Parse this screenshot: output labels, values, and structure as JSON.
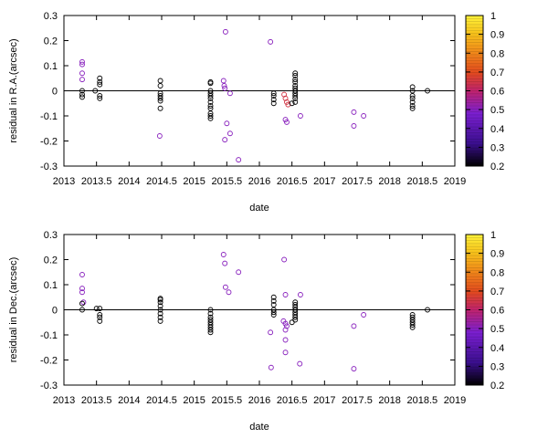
{
  "chart_data": [
    {
      "type": "scatter",
      "xlabel": "date",
      "ylabel": "residual in R.A.(arcsec)",
      "xlim": [
        2013,
        2019
      ],
      "ylim": [
        -0.3,
        0.3
      ],
      "xticks": [
        "2013",
        "2013.5",
        "2014",
        "2014.5",
        "2015",
        "2015.5",
        "2016",
        "2016.5",
        "2017",
        "2017.5",
        "2018",
        "2018.5",
        "2019"
      ],
      "yticks": [
        "0.3",
        "0.2",
        "0.1",
        "0",
        "-0.1",
        "-0.2",
        "-0.3"
      ],
      "zero_line": true,
      "colorbar": {
        "min": 0.2,
        "max": 1,
        "ticks": [
          "1",
          "0.9",
          "0.8",
          "0.7",
          "0.6",
          "0.5",
          "0.4",
          "0.3",
          "0.2"
        ],
        "colors": [
          "#000000",
          "#3b0f8f",
          "#7b1fd0",
          "#c0236c",
          "#e24a1e",
          "#f0861a",
          "#f7c21b",
          "#fff23a"
        ]
      },
      "points": [
        {
          "x": 2013.28,
          "y": 0.115,
          "c": 0.45
        },
        {
          "x": 2013.28,
          "y": 0.105,
          "c": 0.45
        },
        {
          "x": 2013.28,
          "y": 0.07,
          "c": 0.45
        },
        {
          "x": 2013.28,
          "y": 0.045,
          "c": 0.45
        },
        {
          "x": 2013.28,
          "y": 0.0,
          "c": 0.2
        },
        {
          "x": 2013.28,
          "y": -0.015,
          "c": 0.2
        },
        {
          "x": 2013.28,
          "y": -0.025,
          "c": 0.2
        },
        {
          "x": 2013.55,
          "y": 0.05,
          "c": 0.2
        },
        {
          "x": 2013.55,
          "y": 0.035,
          "c": 0.2
        },
        {
          "x": 2013.55,
          "y": 0.025,
          "c": 0.2
        },
        {
          "x": 2013.48,
          "y": 0.0,
          "c": 0.2
        },
        {
          "x": 2013.55,
          "y": -0.02,
          "c": 0.2
        },
        {
          "x": 2013.55,
          "y": -0.03,
          "c": 0.2
        },
        {
          "x": 2014.48,
          "y": 0.04,
          "c": 0.2
        },
        {
          "x": 2014.48,
          "y": 0.02,
          "c": 0.2
        },
        {
          "x": 2014.48,
          "y": -0.01,
          "c": 0.2
        },
        {
          "x": 2014.48,
          "y": -0.02,
          "c": 0.2
        },
        {
          "x": 2014.48,
          "y": -0.03,
          "c": 0.2
        },
        {
          "x": 2014.48,
          "y": -0.04,
          "c": 0.2
        },
        {
          "x": 2014.48,
          "y": -0.07,
          "c": 0.2
        },
        {
          "x": 2014.47,
          "y": -0.18,
          "c": 0.45
        },
        {
          "x": 2015.25,
          "y": 0.035,
          "c": 0.2
        },
        {
          "x": 2015.25,
          "y": 0.03,
          "c": 0.2
        },
        {
          "x": 2015.25,
          "y": 0.0,
          "c": 0.2
        },
        {
          "x": 2015.25,
          "y": -0.01,
          "c": 0.2
        },
        {
          "x": 2015.25,
          "y": -0.02,
          "c": 0.2
        },
        {
          "x": 2015.25,
          "y": -0.03,
          "c": 0.2
        },
        {
          "x": 2015.25,
          "y": -0.045,
          "c": 0.2
        },
        {
          "x": 2015.25,
          "y": -0.06,
          "c": 0.2
        },
        {
          "x": 2015.25,
          "y": -0.07,
          "c": 0.2
        },
        {
          "x": 2015.25,
          "y": -0.09,
          "c": 0.2
        },
        {
          "x": 2015.25,
          "y": -0.1,
          "c": 0.2
        },
        {
          "x": 2015.25,
          "y": -0.11,
          "c": 0.2
        },
        {
          "x": 2015.48,
          "y": 0.235,
          "c": 0.45
        },
        {
          "x": 2015.45,
          "y": 0.04,
          "c": 0.45
        },
        {
          "x": 2015.46,
          "y": 0.02,
          "c": 0.45
        },
        {
          "x": 2015.47,
          "y": 0.01,
          "c": 0.45
        },
        {
          "x": 2015.55,
          "y": -0.01,
          "c": 0.45
        },
        {
          "x": 2015.5,
          "y": -0.13,
          "c": 0.45
        },
        {
          "x": 2015.55,
          "y": -0.17,
          "c": 0.45
        },
        {
          "x": 2015.47,
          "y": -0.195,
          "c": 0.45
        },
        {
          "x": 2015.68,
          "y": -0.275,
          "c": 0.45
        },
        {
          "x": 2016.17,
          "y": 0.195,
          "c": 0.45
        },
        {
          "x": 2016.22,
          "y": -0.01,
          "c": 0.2
        },
        {
          "x": 2016.22,
          "y": -0.02,
          "c": 0.2
        },
        {
          "x": 2016.22,
          "y": -0.035,
          "c": 0.2
        },
        {
          "x": 2016.22,
          "y": -0.05,
          "c": 0.2
        },
        {
          "x": 2016.38,
          "y": -0.015,
          "c": 0.6
        },
        {
          "x": 2016.4,
          "y": -0.03,
          "c": 0.6
        },
        {
          "x": 2016.42,
          "y": -0.045,
          "c": 0.6
        },
        {
          "x": 2016.44,
          "y": -0.055,
          "c": 0.6
        },
        {
          "x": 2016.4,
          "y": -0.115,
          "c": 0.45
        },
        {
          "x": 2016.42,
          "y": -0.125,
          "c": 0.45
        },
        {
          "x": 2016.55,
          "y": 0.07,
          "c": 0.2
        },
        {
          "x": 2016.55,
          "y": 0.06,
          "c": 0.2
        },
        {
          "x": 2016.55,
          "y": 0.045,
          "c": 0.2
        },
        {
          "x": 2016.55,
          "y": 0.035,
          "c": 0.2
        },
        {
          "x": 2016.55,
          "y": 0.02,
          "c": 0.2
        },
        {
          "x": 2016.55,
          "y": 0.01,
          "c": 0.2
        },
        {
          "x": 2016.55,
          "y": 0.0,
          "c": 0.2
        },
        {
          "x": 2016.55,
          "y": -0.01,
          "c": 0.2
        },
        {
          "x": 2016.55,
          "y": -0.02,
          "c": 0.2
        },
        {
          "x": 2016.55,
          "y": -0.03,
          "c": 0.2
        },
        {
          "x": 2016.55,
          "y": -0.045,
          "c": 0.2
        },
        {
          "x": 2016.5,
          "y": -0.05,
          "c": 0.2
        },
        {
          "x": 2016.63,
          "y": -0.1,
          "c": 0.45
        },
        {
          "x": 2017.45,
          "y": -0.085,
          "c": 0.45
        },
        {
          "x": 2017.6,
          "y": -0.1,
          "c": 0.45
        },
        {
          "x": 2017.45,
          "y": -0.14,
          "c": 0.45
        },
        {
          "x": 2018.35,
          "y": 0.015,
          "c": 0.2
        },
        {
          "x": 2018.35,
          "y": 0.0,
          "c": 0.2
        },
        {
          "x": 2018.35,
          "y": -0.02,
          "c": 0.2
        },
        {
          "x": 2018.35,
          "y": -0.03,
          "c": 0.2
        },
        {
          "x": 2018.35,
          "y": -0.045,
          "c": 0.2
        },
        {
          "x": 2018.35,
          "y": -0.06,
          "c": 0.2
        },
        {
          "x": 2018.35,
          "y": -0.07,
          "c": 0.2
        },
        {
          "x": 2018.58,
          "y": 0.0,
          "c": 0.2
        }
      ]
    },
    {
      "type": "scatter",
      "xlabel": "date",
      "ylabel": "residual in Dec.(arcsec)",
      "xlim": [
        2013,
        2019
      ],
      "ylim": [
        -0.3,
        0.3
      ],
      "xticks": [
        "2013",
        "2013.5",
        "2014",
        "2014.5",
        "2015",
        "2015.5",
        "2016",
        "2016.5",
        "2017",
        "2017.5",
        "2018",
        "2018.5",
        "2019"
      ],
      "yticks": [
        "0.3",
        "0.2",
        "0.1",
        "0",
        "-0.1",
        "-0.2",
        "-0.3"
      ],
      "zero_line": true,
      "colorbar": {
        "min": 0.2,
        "max": 1,
        "ticks": [
          "1",
          "0.9",
          "0.8",
          "0.7",
          "0.6",
          "0.5",
          "0.4",
          "0.3",
          "0.2"
        ],
        "colors": [
          "#000000",
          "#3b0f8f",
          "#7b1fd0",
          "#c0236c",
          "#e24a1e",
          "#f0861a",
          "#f7c21b",
          "#fff23a"
        ]
      },
      "points": [
        {
          "x": 2013.28,
          "y": 0.14,
          "c": 0.45
        },
        {
          "x": 2013.28,
          "y": 0.085,
          "c": 0.45
        },
        {
          "x": 2013.28,
          "y": 0.07,
          "c": 0.45
        },
        {
          "x": 2013.3,
          "y": 0.03,
          "c": 0.45
        },
        {
          "x": 2013.28,
          "y": 0.025,
          "c": 0.2
        },
        {
          "x": 2013.28,
          "y": 0.0,
          "c": 0.2
        },
        {
          "x": 2013.5,
          "y": 0.005,
          "c": 0.2
        },
        {
          "x": 2013.55,
          "y": 0.005,
          "c": 0.2
        },
        {
          "x": 2013.55,
          "y": -0.02,
          "c": 0.2
        },
        {
          "x": 2013.55,
          "y": -0.03,
          "c": 0.2
        },
        {
          "x": 2013.55,
          "y": -0.045,
          "c": 0.2
        },
        {
          "x": 2014.48,
          "y": 0.045,
          "c": 0.2
        },
        {
          "x": 2014.48,
          "y": 0.04,
          "c": 0.2
        },
        {
          "x": 2014.48,
          "y": 0.03,
          "c": 0.2
        },
        {
          "x": 2014.48,
          "y": 0.015,
          "c": 0.2
        },
        {
          "x": 2014.48,
          "y": 0.0,
          "c": 0.2
        },
        {
          "x": 2014.48,
          "y": -0.015,
          "c": 0.2
        },
        {
          "x": 2014.48,
          "y": -0.03,
          "c": 0.2
        },
        {
          "x": 2014.48,
          "y": -0.045,
          "c": 0.2
        },
        {
          "x": 2015.25,
          "y": 0.0,
          "c": 0.2
        },
        {
          "x": 2015.25,
          "y": -0.015,
          "c": 0.2
        },
        {
          "x": 2015.25,
          "y": -0.03,
          "c": 0.2
        },
        {
          "x": 2015.25,
          "y": -0.04,
          "c": 0.2
        },
        {
          "x": 2015.25,
          "y": -0.05,
          "c": 0.2
        },
        {
          "x": 2015.25,
          "y": -0.06,
          "c": 0.2
        },
        {
          "x": 2015.25,
          "y": -0.07,
          "c": 0.2
        },
        {
          "x": 2015.25,
          "y": -0.08,
          "c": 0.2
        },
        {
          "x": 2015.25,
          "y": -0.09,
          "c": 0.2
        },
        {
          "x": 2015.45,
          "y": 0.22,
          "c": 0.45
        },
        {
          "x": 2015.47,
          "y": 0.185,
          "c": 0.45
        },
        {
          "x": 2015.68,
          "y": 0.15,
          "c": 0.45
        },
        {
          "x": 2015.48,
          "y": 0.09,
          "c": 0.45
        },
        {
          "x": 2015.53,
          "y": 0.07,
          "c": 0.45
        },
        {
          "x": 2016.22,
          "y": 0.05,
          "c": 0.2
        },
        {
          "x": 2016.22,
          "y": 0.035,
          "c": 0.2
        },
        {
          "x": 2016.22,
          "y": 0.02,
          "c": 0.2
        },
        {
          "x": 2016.22,
          "y": 0.0,
          "c": 0.2
        },
        {
          "x": 2016.22,
          "y": -0.01,
          "c": 0.2
        },
        {
          "x": 2016.22,
          "y": -0.02,
          "c": 0.2
        },
        {
          "x": 2016.17,
          "y": -0.09,
          "c": 0.45
        },
        {
          "x": 2016.18,
          "y": -0.23,
          "c": 0.45
        },
        {
          "x": 2016.38,
          "y": 0.2,
          "c": 0.45
        },
        {
          "x": 2016.4,
          "y": 0.06,
          "c": 0.45
        },
        {
          "x": 2016.37,
          "y": -0.045,
          "c": 0.45
        },
        {
          "x": 2016.4,
          "y": -0.055,
          "c": 0.45
        },
        {
          "x": 2016.42,
          "y": -0.065,
          "c": 0.45
        },
        {
          "x": 2016.4,
          "y": -0.08,
          "c": 0.45
        },
        {
          "x": 2016.4,
          "y": -0.12,
          "c": 0.45
        },
        {
          "x": 2016.4,
          "y": -0.17,
          "c": 0.45
        },
        {
          "x": 2016.55,
          "y": 0.03,
          "c": 0.2
        },
        {
          "x": 2016.55,
          "y": 0.02,
          "c": 0.2
        },
        {
          "x": 2016.55,
          "y": 0.01,
          "c": 0.2
        },
        {
          "x": 2016.55,
          "y": 0.0,
          "c": 0.2
        },
        {
          "x": 2016.55,
          "y": -0.01,
          "c": 0.2
        },
        {
          "x": 2016.55,
          "y": -0.02,
          "c": 0.2
        },
        {
          "x": 2016.55,
          "y": -0.03,
          "c": 0.2
        },
        {
          "x": 2016.55,
          "y": -0.04,
          "c": 0.2
        },
        {
          "x": 2016.5,
          "y": -0.05,
          "c": 0.2
        },
        {
          "x": 2016.63,
          "y": 0.06,
          "c": 0.45
        },
        {
          "x": 2016.62,
          "y": -0.215,
          "c": 0.45
        },
        {
          "x": 2017.45,
          "y": -0.065,
          "c": 0.45
        },
        {
          "x": 2017.6,
          "y": -0.02,
          "c": 0.45
        },
        {
          "x": 2017.45,
          "y": -0.235,
          "c": 0.45
        },
        {
          "x": 2018.35,
          "y": -0.02,
          "c": 0.2
        },
        {
          "x": 2018.35,
          "y": -0.03,
          "c": 0.2
        },
        {
          "x": 2018.35,
          "y": -0.04,
          "c": 0.2
        },
        {
          "x": 2018.35,
          "y": -0.05,
          "c": 0.2
        },
        {
          "x": 2018.35,
          "y": -0.06,
          "c": 0.2
        },
        {
          "x": 2018.35,
          "y": -0.07,
          "c": 0.2
        },
        {
          "x": 2018.58,
          "y": 0.0,
          "c": 0.2
        }
      ]
    }
  ]
}
